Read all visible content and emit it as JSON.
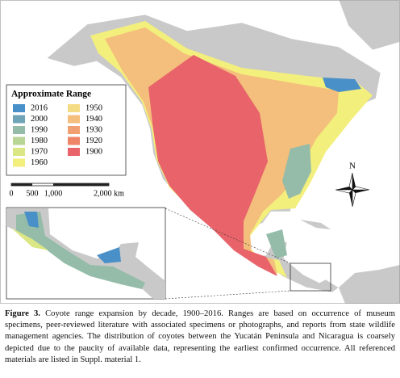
{
  "legend": {
    "title": "Approximate Range",
    "items": [
      {
        "label": "2016",
        "color": "#4a90c8"
      },
      {
        "label": "2000",
        "color": "#6fa3b8"
      },
      {
        "label": "1990",
        "color": "#94bca8"
      },
      {
        "label": "1980",
        "color": "#b9d596"
      },
      {
        "label": "1970",
        "color": "#dbe784"
      },
      {
        "label": "1960",
        "color": "#f3ef7c"
      },
      {
        "label": "1950",
        "color": "#f4dc84"
      },
      {
        "label": "1940",
        "color": "#f4be7c"
      },
      {
        "label": "1930",
        "color": "#f1a072"
      },
      {
        "label": "1920",
        "color": "#ee8468"
      },
      {
        "label": "1900",
        "color": "#e8636a"
      }
    ]
  },
  "scale": {
    "labels": [
      "0",
      "500",
      "1,000",
      "2,000 km"
    ]
  },
  "compass": "N",
  "caption": {
    "label": "Figure 3.",
    "text": "Coyote range expansion by decade, 1900–2016. Ranges are based on occurrence of museum specimens, peer-reviewed literature with associated specimens or photographs, and reports from state wildlife management agencies. The distribution of coyotes between the Yucatán Peninsula and Nicaragua is coarsely depicted due to the paucity of available data, representing the earliest confirmed occurrence. All referenced materials are listed in Suppl. material 1."
  }
}
